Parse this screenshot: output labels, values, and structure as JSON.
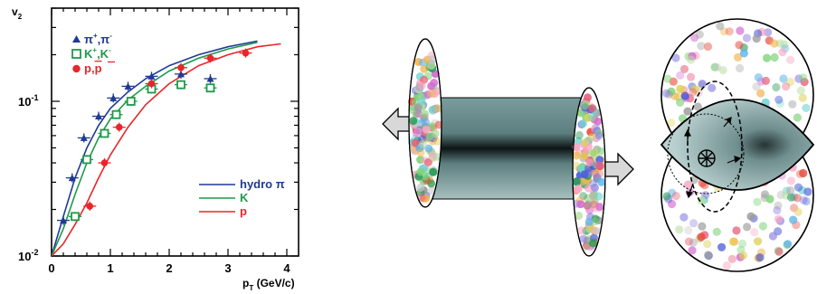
{
  "chart_data": {
    "type": "scatter",
    "title": "",
    "ylabel": "v",
    "ylabel_sub": "2",
    "xlabel": "p",
    "xlabel_sub": "T",
    "xlabel_unit": " (GeV/c)",
    "xlim": [
      0,
      4.2
    ],
    "ylim": [
      0.01,
      0.4
    ],
    "yscale": "log",
    "x_ticks": [
      "0",
      "1",
      "2",
      "3",
      "4"
    ],
    "y_ticks": [
      {
        "base": "10",
        "exp": "-1",
        "value": 0.1
      },
      {
        "base": "10",
        "exp": "-2",
        "value": 0.01
      }
    ],
    "legend_markers": [
      {
        "symbol": "triangle",
        "color": "#1f3a93",
        "parts": [
          "π",
          "+",
          ",π",
          "-"
        ]
      },
      {
        "symbol": "open-square",
        "color": "#1e9a4a",
        "parts": [
          "K",
          "+",
          ",K",
          "-"
        ]
      },
      {
        "symbol": "circle",
        "color": "#e8262a",
        "parts": [
          "p,",
          "p"
        ]
      }
    ],
    "legend_lines": [
      {
        "label": "hydro π",
        "color": "#1f3a93"
      },
      {
        "label": "K",
        "color": "#1e9a4a"
      },
      {
        "label": "p",
        "color": "#e8262a"
      }
    ],
    "series": [
      {
        "symbol": "triangle",
        "color": "#1f3a93",
        "x": [
          0.2,
          0.35,
          0.55,
          0.8,
          1.05,
          1.3,
          1.7,
          2.2,
          2.7
        ],
        "y": [
          0.017,
          0.032,
          0.058,
          0.08,
          0.105,
          0.125,
          0.145,
          0.15,
          0.14
        ]
      },
      {
        "symbol": "open-square",
        "color": "#1e9a4a",
        "x": [
          0.4,
          0.6,
          0.9,
          1.1,
          1.35,
          1.7,
          2.2,
          2.7
        ],
        "y": [
          0.018,
          0.042,
          0.062,
          0.082,
          0.1,
          0.12,
          0.128,
          0.122
        ]
      },
      {
        "symbol": "circle",
        "color": "#e8262a",
        "x": [
          0.65,
          0.9,
          1.15,
          1.7,
          2.2,
          2.7,
          3.3
        ],
        "y": [
          0.021,
          0.04,
          0.068,
          0.13,
          0.165,
          0.19,
          0.205
        ]
      }
    ],
    "curves": [
      {
        "color": "#1f3a93",
        "x": [
          0,
          0.2,
          0.4,
          0.6,
          0.8,
          1.0,
          1.3,
          1.6,
          2.0,
          2.5,
          3.0,
          3.5
        ],
        "y": [
          0.01,
          0.018,
          0.032,
          0.05,
          0.07,
          0.09,
          0.115,
          0.14,
          0.17,
          0.2,
          0.225,
          0.245
        ]
      },
      {
        "color": "#1e9a4a",
        "x": [
          0,
          0.2,
          0.4,
          0.6,
          0.8,
          1.0,
          1.3,
          1.6,
          2.0,
          2.5,
          3.0,
          3.5
        ],
        "y": [
          0.01,
          0.015,
          0.025,
          0.04,
          0.058,
          0.077,
          0.102,
          0.125,
          0.157,
          0.19,
          0.218,
          0.24
        ]
      },
      {
        "color": "#e8262a",
        "x": [
          0,
          0.2,
          0.4,
          0.6,
          0.8,
          1.0,
          1.3,
          1.6,
          2.0,
          2.5,
          3.0,
          3.5,
          3.9
        ],
        "y": [
          0.01,
          0.012,
          0.016,
          0.022,
          0.032,
          0.045,
          0.068,
          0.095,
          0.13,
          0.17,
          0.2,
          0.225,
          0.235
        ]
      }
    ]
  },
  "diagram": {
    "tube_color_edge": "#6c8f8f",
    "tube_color_mid": "#0d1414",
    "almond_color": "#a9c3c2",
    "particle_palette": [
      "#e85d75",
      "#7fd37a",
      "#8a7fe0",
      "#f2b44c",
      "#5fb4e8",
      "#d46bd0",
      "#c7c7c7",
      "#4b5bd6",
      "#2e9a57",
      "#e94b3c",
      "#b8e0a0",
      "#f7a8c4",
      "#9c9c9c",
      "#6fd6d0",
      "#e0d055"
    ],
    "arrow_icons": [
      "left-arrow-icon",
      "right-arrow-icon"
    ]
  }
}
